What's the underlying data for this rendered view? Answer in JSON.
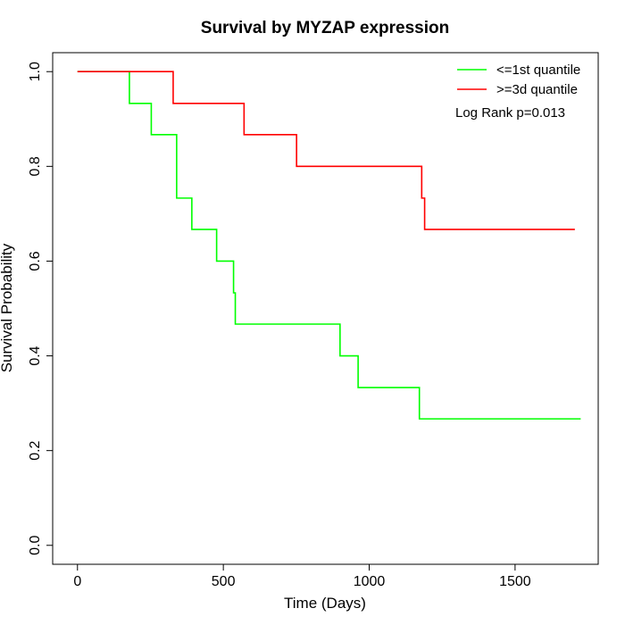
{
  "chart_data": {
    "type": "line",
    "step": "post",
    "title": "Survival by MYZAP expression",
    "xlabel": "Time (Days)",
    "ylabel": "Survival Probability",
    "xlim": [
      -85,
      1785
    ],
    "ylim": [
      -0.04,
      1.04
    ],
    "xticks": [
      0,
      500,
      1000,
      1500
    ],
    "xtick_labels": [
      "0",
      "500",
      "1000",
      "1500"
    ],
    "yticks": [
      0.0,
      0.2,
      0.4,
      0.6,
      0.8,
      1.0
    ],
    "ytick_labels": [
      "0.0",
      "0.2",
      "0.4",
      "0.6",
      "0.8",
      "1.0"
    ],
    "legend_position": "top-right",
    "grid": false,
    "series": [
      {
        "name": "<=1st quantile",
        "color": "#00ff00",
        "x": [
          0,
          178,
          253,
          340,
          392,
          477,
          535,
          541,
          900,
          962,
          1172,
          1725
        ],
        "y": [
          1.0,
          0.933,
          0.867,
          0.733,
          0.667,
          0.6,
          0.533,
          0.467,
          0.4,
          0.333,
          0.267,
          0.267
        ]
      },
      {
        "name": ">=3d quantile",
        "color": "#ff0000",
        "x": [
          0,
          328,
          571,
          751,
          1180,
          1190,
          1705
        ],
        "y": [
          1.0,
          0.933,
          0.867,
          0.8,
          0.733,
          0.667,
          0.667
        ]
      }
    ],
    "annotations": [
      "Log Rank p=0.013"
    ]
  }
}
